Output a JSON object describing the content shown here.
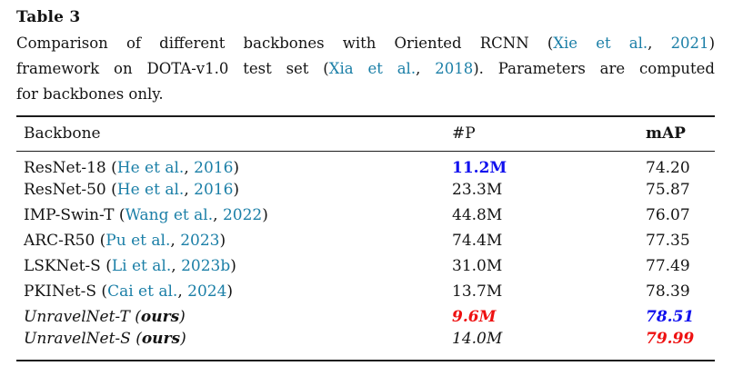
{
  "colors": {
    "link_teal": "#1b7fa7",
    "emphasis_blue": "#1111ee",
    "emphasis_red": "#ee1111",
    "text": "#141414",
    "rule": "#1c1c1c",
    "background": "#ffffff"
  },
  "table_label": "Table 3",
  "caption_lines": [
    {
      "justify": true,
      "segments": [
        {
          "text": "Comparison of different backbones with Oriented RCNN (",
          "style": "plain"
        },
        {
          "text": "Xie et al.",
          "style": "link"
        },
        {
          "text": ", ",
          "style": "plain"
        },
        {
          "text": "2021",
          "style": "link"
        },
        {
          "text": ")",
          "style": "plain"
        }
      ]
    },
    {
      "justify": true,
      "segments": [
        {
          "text": "framework on DOTA-v1.0 test set (",
          "style": "plain"
        },
        {
          "text": "Xia et al.",
          "style": "link"
        },
        {
          "text": ", ",
          "style": "plain"
        },
        {
          "text": "2018",
          "style": "link"
        },
        {
          "text": "). Parameters are computed",
          "style": "plain"
        }
      ]
    },
    {
      "justify": false,
      "segments": [
        {
          "text": "for backbones only.",
          "style": "plain"
        }
      ]
    }
  ],
  "table": {
    "headers": [
      {
        "label": "Backbone",
        "bold": false
      },
      {
        "label": "#P",
        "bold": false
      },
      {
        "label": "mAP",
        "bold": true
      }
    ],
    "rows": [
      {
        "name_segments": [
          {
            "text": "ResNet-18 (",
            "style": "plain"
          },
          {
            "text": "He et al.",
            "style": "link"
          },
          {
            "text": ", ",
            "style": "plain"
          },
          {
            "text": "2016",
            "style": "link"
          },
          {
            "text": ")",
            "style": "plain"
          }
        ],
        "params": {
          "text": "11.2M",
          "style": "blue-bold"
        },
        "map": {
          "text": "74.20",
          "style": "plain"
        }
      },
      {
        "name_segments": [
          {
            "text": "ResNet-50 (",
            "style": "plain"
          },
          {
            "text": "He et al.",
            "style": "link"
          },
          {
            "text": ", ",
            "style": "plain"
          },
          {
            "text": "2016",
            "style": "link"
          },
          {
            "text": ")",
            "style": "plain"
          }
        ],
        "params": {
          "text": "23.3M",
          "style": "plain"
        },
        "map": {
          "text": "75.87",
          "style": "plain"
        }
      },
      {
        "name_segments": [
          {
            "text": "IMP-Swin-T (",
            "style": "plain"
          },
          {
            "text": "Wang et al.",
            "style": "link"
          },
          {
            "text": ", ",
            "style": "plain"
          },
          {
            "text": "2022",
            "style": "link"
          },
          {
            "text": ")",
            "style": "plain"
          }
        ],
        "params": {
          "text": "44.8M",
          "style": "plain"
        },
        "map": {
          "text": "76.07",
          "style": "plain"
        }
      },
      {
        "name_segments": [
          {
            "text": "ARC-R50 (",
            "style": "plain"
          },
          {
            "text": "Pu et al.",
            "style": "link"
          },
          {
            "text": ", ",
            "style": "plain"
          },
          {
            "text": "2023",
            "style": "link"
          },
          {
            "text": ")",
            "style": "plain"
          }
        ],
        "params": {
          "text": "74.4M",
          "style": "plain"
        },
        "map": {
          "text": "77.35",
          "style": "plain"
        }
      },
      {
        "name_segments": [
          {
            "text": "LSKNet-S (",
            "style": "plain"
          },
          {
            "text": "Li et al.",
            "style": "link"
          },
          {
            "text": ", ",
            "style": "plain"
          },
          {
            "text": "2023b",
            "style": "link"
          },
          {
            "text": ")",
            "style": "plain"
          }
        ],
        "params": {
          "text": "31.0M",
          "style": "plain"
        },
        "map": {
          "text": "77.49",
          "style": "plain"
        }
      },
      {
        "name_segments": [
          {
            "text": "PKINet-S (",
            "style": "plain"
          },
          {
            "text": "Cai et al.",
            "style": "link"
          },
          {
            "text": ", ",
            "style": "plain"
          },
          {
            "text": "2024",
            "style": "link"
          },
          {
            "text": ")",
            "style": "plain"
          }
        ],
        "params": {
          "text": "13.7M",
          "style": "plain"
        },
        "map": {
          "text": "78.39",
          "style": "plain"
        }
      },
      {
        "name_segments": [
          {
            "text": "UnravelNet-T (",
            "style": "italic"
          },
          {
            "text": "ours",
            "style": "bold-italic"
          },
          {
            "text": ")",
            "style": "italic"
          }
        ],
        "params": {
          "text": "9.6M",
          "style": "red-bold-italic"
        },
        "map": {
          "text": "78.51",
          "style": "blue-bold-italic"
        }
      },
      {
        "name_segments": [
          {
            "text": "UnravelNet-S (",
            "style": "italic"
          },
          {
            "text": "ours",
            "style": "bold-italic"
          },
          {
            "text": ")",
            "style": "italic"
          }
        ],
        "params": {
          "text": "14.0M",
          "style": "italic"
        },
        "map": {
          "text": "79.99",
          "style": "red-bold-italic"
        }
      }
    ]
  }
}
